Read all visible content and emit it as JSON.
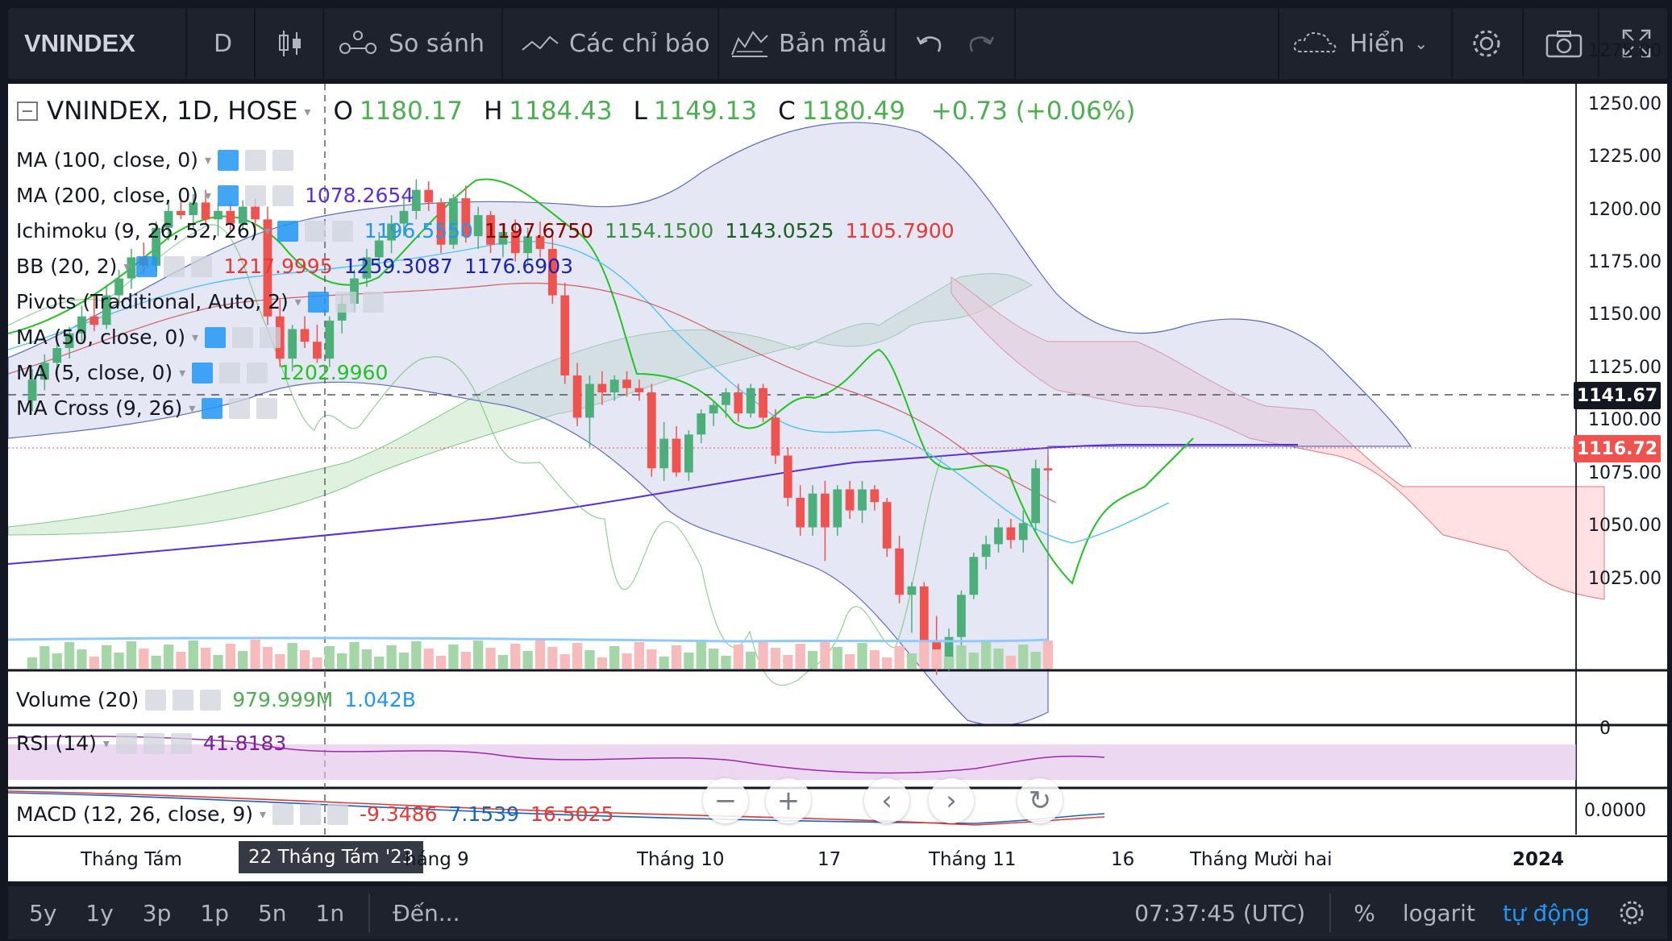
{
  "toolbar": {
    "symbol": "VNINDEX",
    "interval": "D",
    "compare_label": "So sánh",
    "indicators_label": "Các chỉ báo",
    "templates_label": "Bản mẫu",
    "display_label": "Hiển",
    "icons": [
      "candles-icon",
      "compare-icon",
      "indicators-icon",
      "templates-icon",
      "undo-icon",
      "redo-icon",
      "cloud-icon",
      "gear-icon",
      "camera-icon",
      "fullscreen-icon"
    ]
  },
  "header": {
    "title": "VNINDEX, 1D, HOSE",
    "o_label": "O",
    "o_value": "1180.17",
    "h_label": "H",
    "h_value": "1184.43",
    "l_label": "L",
    "l_value": "1149.13",
    "c_label": "C",
    "c_value": "1180.49",
    "change": "+0.73 (+0.06%)"
  },
  "legend": [
    {
      "name": "MA (100, close, 0)",
      "values": []
    },
    {
      "name": "MA (200, close, 0)",
      "values": [
        {
          "v": "1078.2654",
          "color": "#5b2be0"
        }
      ]
    },
    {
      "name": "Ichimoku (9, 26, 52, 26)",
      "values": [
        {
          "v": "1196.5550",
          "color": "#2196f3"
        },
        {
          "v": "1197.6750",
          "color": "#8b0000"
        },
        {
          "v": "1154.1500",
          "color": "#388e3c"
        },
        {
          "v": "1143.0525",
          "color": "#1b5e20"
        },
        {
          "v": "1105.7900",
          "color": "#e53935"
        }
      ]
    },
    {
      "name": "BB (20, 2)",
      "values": [
        {
          "v": "1217.9995",
          "color": "#e53935"
        },
        {
          "v": "1259.3087",
          "color": "#1a23b5"
        },
        {
          "v": "1176.6903",
          "color": "#1a23b5"
        }
      ]
    },
    {
      "name": "Pivots (Traditional, Auto, 2)",
      "values": []
    },
    {
      "name": "MA (50, close, 0)",
      "values": []
    },
    {
      "name": "MA (5, close, 0)",
      "values": [
        {
          "v": "1202.9960",
          "color": "#22c322"
        }
      ]
    },
    {
      "name": "MA Cross (9, 26)",
      "values": []
    }
  ],
  "volume_pane": {
    "name": "Volume (20)",
    "values": [
      {
        "v": "979.999M",
        "color": "#4caf50"
      },
      {
        "v": "1.042B",
        "color": "#2196f3"
      }
    ],
    "axis_label": "0"
  },
  "rsi_pane": {
    "name": "RSI (14)",
    "values": [
      {
        "v": "41.8183",
        "color": "#7b1fa2"
      }
    ]
  },
  "macd_pane": {
    "name": "MACD (12, 26, close, 9)",
    "values": [
      {
        "v": "-9.3486",
        "color": "#e53935"
      },
      {
        "v": "7.1539",
        "color": "#1565c0"
      },
      {
        "v": "16.5025",
        "color": "#e53935"
      }
    ],
    "axis_label": "0.0000"
  },
  "price_axis": {
    "ticks": [
      "1275.00",
      "1250.00",
      "1225.00",
      "1200.00",
      "1175.00",
      "1150.00",
      "1125.00",
      "1100.00",
      "1075.00",
      "1050.00",
      "1025.00"
    ],
    "tag_dashed": "1141.67",
    "tag_last": "1116.72"
  },
  "time_axis": {
    "labels": [
      "Tháng Tám",
      "háng 9",
      "Tháng 10",
      "17",
      "Tháng 11",
      "16",
      "Tháng Mười hai",
      "2024"
    ],
    "crosshair_label": "22 Tháng Tám '23"
  },
  "nav_buttons": [
    "zoom-out",
    "zoom-in",
    "scroll-left",
    "scroll-right",
    "reset"
  ],
  "bottombar": {
    "ranges": [
      "5y",
      "1y",
      "3p",
      "1p",
      "5n",
      "1n"
    ],
    "goto": "Đến...",
    "time": "07:37:45 (UTC)",
    "percent": "%",
    "log": "logarit",
    "auto": "tự động"
  },
  "colors": {
    "up": "#26a69a",
    "up_candle": "#4caf7a",
    "down": "#ef5350",
    "bg": "#131722",
    "panel": "#1e222d",
    "auto_active": "#2196f3"
  },
  "chart_data": {
    "type": "candlestick",
    "price_range": [
      1010,
      1285
    ],
    "candles": [
      [
        1150,
        1165,
        1145,
        1160
      ],
      [
        1160,
        1172,
        1155,
        1168
      ],
      [
        1168,
        1178,
        1160,
        1175
      ],
      [
        1175,
        1185,
        1170,
        1182
      ],
      [
        1182,
        1195,
        1178,
        1190
      ],
      [
        1190,
        1200,
        1183,
        1186
      ],
      [
        1186,
        1205,
        1184,
        1200
      ],
      [
        1200,
        1212,
        1195,
        1208
      ],
      [
        1208,
        1222,
        1203,
        1218
      ],
      [
        1218,
        1225,
        1210,
        1214
      ],
      [
        1214,
        1235,
        1211,
        1232
      ],
      [
        1232,
        1245,
        1226,
        1240
      ],
      [
        1240,
        1246,
        1236,
        1238
      ],
      [
        1238,
        1248,
        1232,
        1244
      ],
      [
        1244,
        1250,
        1234,
        1236
      ],
      [
        1236,
        1244,
        1228,
        1240
      ],
      [
        1240,
        1244,
        1230,
        1234
      ],
      [
        1234,
        1245,
        1231,
        1242
      ],
      [
        1242,
        1246,
        1232,
        1236
      ],
      [
        1236,
        1242,
        1186,
        1190
      ],
      [
        1190,
        1198,
        1166,
        1170
      ],
      [
        1170,
        1186,
        1164,
        1184
      ],
      [
        1184,
        1190,
        1175,
        1178
      ],
      [
        1178,
        1186,
        1168,
        1170
      ],
      [
        1170,
        1190,
        1166,
        1188
      ],
      [
        1188,
        1200,
        1182,
        1196
      ],
      [
        1196,
        1212,
        1192,
        1208
      ],
      [
        1208,
        1222,
        1204,
        1218
      ],
      [
        1218,
        1230,
        1214,
        1226
      ],
      [
        1226,
        1238,
        1220,
        1234
      ],
      [
        1234,
        1246,
        1228,
        1240
      ],
      [
        1240,
        1255,
        1236,
        1250
      ],
      [
        1250,
        1254,
        1240,
        1244
      ],
      [
        1244,
        1246,
        1220,
        1224
      ],
      [
        1224,
        1248,
        1222,
        1246
      ],
      [
        1246,
        1252,
        1225,
        1228
      ],
      [
        1228,
        1242,
        1222,
        1238
      ],
      [
        1238,
        1240,
        1220,
        1224
      ],
      [
        1224,
        1234,
        1218,
        1230
      ],
      [
        1230,
        1236,
        1216,
        1220
      ],
      [
        1220,
        1232,
        1215,
        1228
      ],
      [
        1228,
        1235,
        1218,
        1222
      ],
      [
        1222,
        1228,
        1196,
        1200
      ],
      [
        1200,
        1206,
        1158,
        1162
      ],
      [
        1162,
        1168,
        1138,
        1142
      ],
      [
        1142,
        1162,
        1128,
        1158
      ],
      [
        1158,
        1164,
        1148,
        1154
      ],
      [
        1154,
        1162,
        1150,
        1160
      ],
      [
        1160,
        1164,
        1152,
        1156
      ],
      [
        1156,
        1160,
        1150,
        1154
      ],
      [
        1154,
        1158,
        1114,
        1118
      ],
      [
        1118,
        1140,
        1112,
        1132
      ],
      [
        1132,
        1138,
        1114,
        1116
      ],
      [
        1116,
        1136,
        1112,
        1134
      ],
      [
        1134,
        1146,
        1130,
        1144
      ],
      [
        1144,
        1150,
        1138,
        1148
      ],
      [
        1148,
        1156,
        1142,
        1154
      ],
      [
        1154,
        1158,
        1140,
        1144
      ],
      [
        1144,
        1158,
        1142,
        1156
      ],
      [
        1156,
        1158,
        1140,
        1142
      ],
      [
        1142,
        1146,
        1120,
        1124
      ],
      [
        1124,
        1128,
        1100,
        1104
      ],
      [
        1104,
        1110,
        1086,
        1090
      ],
      [
        1090,
        1110,
        1086,
        1106
      ],
      [
        1106,
        1112,
        1074,
        1090
      ],
      [
        1090,
        1110,
        1086,
        1108
      ],
      [
        1108,
        1112,
        1094,
        1098
      ],
      [
        1098,
        1112,
        1092,
        1108
      ],
      [
        1108,
        1110,
        1098,
        1102
      ],
      [
        1102,
        1104,
        1076,
        1080
      ],
      [
        1080,
        1086,
        1054,
        1058
      ],
      [
        1058,
        1064,
        1040,
        1062
      ],
      [
        1062,
        1064,
        1032,
        1036
      ],
      [
        1036,
        1048,
        1020,
        1028
      ],
      [
        1028,
        1042,
        1022,
        1038
      ],
      [
        1038,
        1060,
        1030,
        1058
      ],
      [
        1058,
        1078,
        1056,
        1076
      ],
      [
        1076,
        1086,
        1070,
        1082
      ],
      [
        1082,
        1094,
        1078,
        1090
      ],
      [
        1090,
        1094,
        1080,
        1084
      ],
      [
        1084,
        1098,
        1078,
        1092
      ],
      [
        1092,
        1122,
        1088,
        1118
      ],
      [
        1118,
        1124,
        1112,
        1117
      ]
    ]
  }
}
